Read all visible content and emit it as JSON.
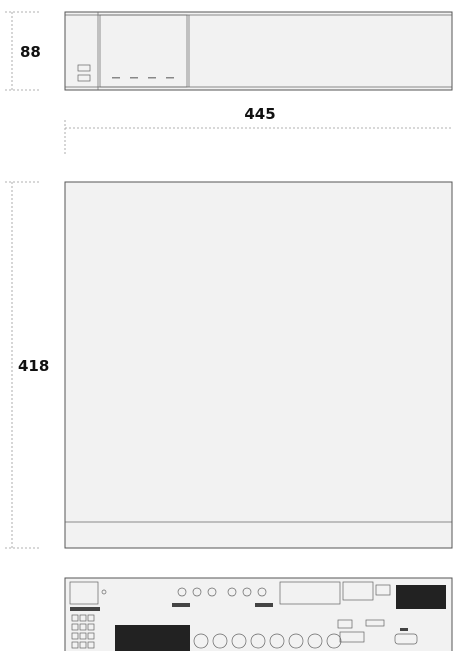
{
  "dimensions": {
    "height": "88",
    "width": "445",
    "depth": "418"
  }
}
